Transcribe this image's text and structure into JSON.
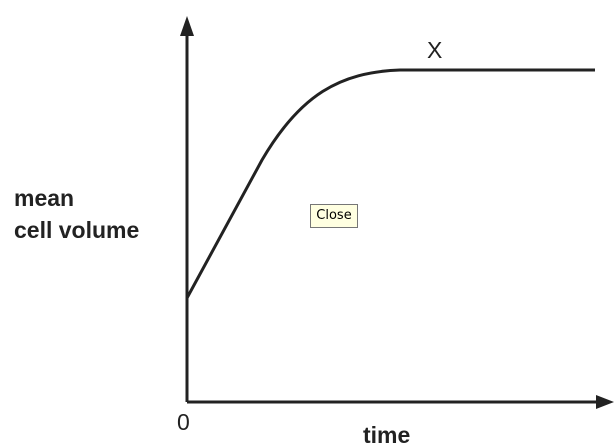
{
  "graph": {
    "y_label": [
      "mean",
      "cell volume"
    ],
    "x_label": "time",
    "origin": "0",
    "curve_label": "X"
  },
  "button": {
    "label": "Close"
  }
}
